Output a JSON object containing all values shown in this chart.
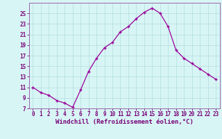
{
  "x": [
    0,
    1,
    2,
    3,
    4,
    5,
    6,
    7,
    8,
    9,
    10,
    11,
    12,
    13,
    14,
    15,
    16,
    17,
    18,
    19,
    20,
    21,
    22,
    23
  ],
  "y": [
    11,
    10,
    9.5,
    8.5,
    8,
    7.2,
    10.5,
    14,
    16.5,
    18.5,
    19.5,
    21.5,
    22.5,
    24,
    25.2,
    26,
    25,
    22.5,
    18,
    16.5,
    15.5,
    14.5,
    13.5,
    12.5
  ],
  "line_color": "#990099",
  "marker": "+",
  "bg_color": "#d8f5f5",
  "grid_color": "#b0dede",
  "xlabel": "Windchill (Refroidissement éolien,°C)",
  "xlim": [
    -0.5,
    23.5
  ],
  "ylim": [
    7,
    27
  ],
  "yticks": [
    7,
    9,
    11,
    13,
    15,
    17,
    19,
    21,
    23,
    25
  ],
  "xticks": [
    0,
    1,
    2,
    3,
    4,
    5,
    6,
    7,
    8,
    9,
    10,
    11,
    12,
    13,
    14,
    15,
    16,
    17,
    18,
    19,
    20,
    21,
    22,
    23
  ],
  "tick_fontsize": 5.5,
  "xlabel_fontsize": 6.5,
  "axis_color": "#770077",
  "spine_color": "#9966aa"
}
